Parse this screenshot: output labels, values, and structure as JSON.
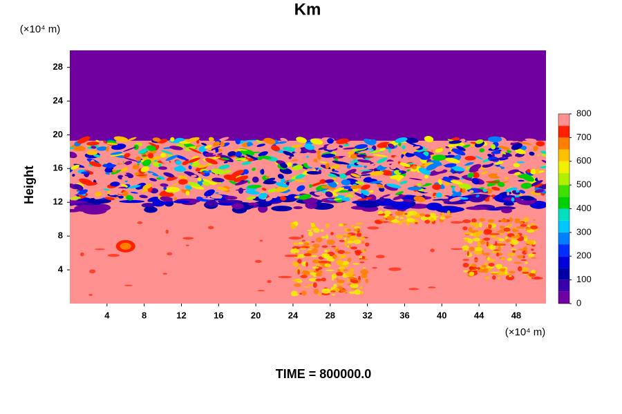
{
  "chart_data": {
    "type": "contour",
    "title": "Km",
    "x_unit": "(×10⁴ m)",
    "y_unit": "(×10⁴ m)",
    "y_label": "Height",
    "time_label": "TIME = 800000.0",
    "xlim": [
      0,
      51.2
    ],
    "ylim": [
      0,
      30
    ],
    "xticks": [
      4,
      8,
      12,
      16,
      20,
      24,
      28,
      32,
      36,
      40,
      44,
      48
    ],
    "yticks": [
      4,
      8,
      12,
      16,
      20,
      24,
      28
    ],
    "colorbar": {
      "levels": [
        0,
        50,
        100,
        150,
        200,
        250,
        300,
        350,
        400,
        450,
        500,
        550,
        600,
        650,
        700,
        750,
        800
      ],
      "colors": [
        "#7000a0",
        "#3c00a8",
        "#0000a8",
        "#0000d8",
        "#0030ff",
        "#0080ff",
        "#00c8ff",
        "#00e0c0",
        "#00d000",
        "#40e000",
        "#b0f000",
        "#f0f000",
        "#ffc000",
        "#ff8000",
        "#ff2000",
        "#ff9090"
      ],
      "ticks": [
        0,
        100,
        200,
        300,
        400,
        500,
        600,
        700,
        800
      ]
    }
  }
}
